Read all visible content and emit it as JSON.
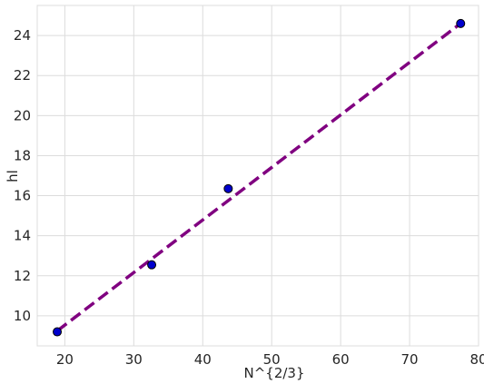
{
  "chart_data": {
    "type": "scatter",
    "title": "",
    "xlabel": "N^{2/3}",
    "ylabel": "hl",
    "xlim": [
      16,
      80
    ],
    "ylim": [
      8.5,
      25.5
    ],
    "xticks": [
      20,
      30,
      40,
      50,
      60,
      70,
      80
    ],
    "yticks": [
      10,
      12,
      14,
      16,
      18,
      20,
      22,
      24
    ],
    "grid": true,
    "legend": "none",
    "series": [
      {
        "kind": "scatter",
        "x": [
          18.9,
          32.6,
          43.7,
          77.4
        ],
        "y": [
          9.2,
          12.55,
          16.35,
          24.6
        ]
      },
      {
        "kind": "line",
        "style": "dashed",
        "x": [
          18.9,
          77.4
        ],
        "y": [
          9.25,
          24.6
        ]
      }
    ],
    "colors": {
      "points": "#0000cd",
      "point_edge": "#000000",
      "fit_line": "#800080",
      "grid": "#dcdcdc",
      "axis": "#262626"
    }
  }
}
